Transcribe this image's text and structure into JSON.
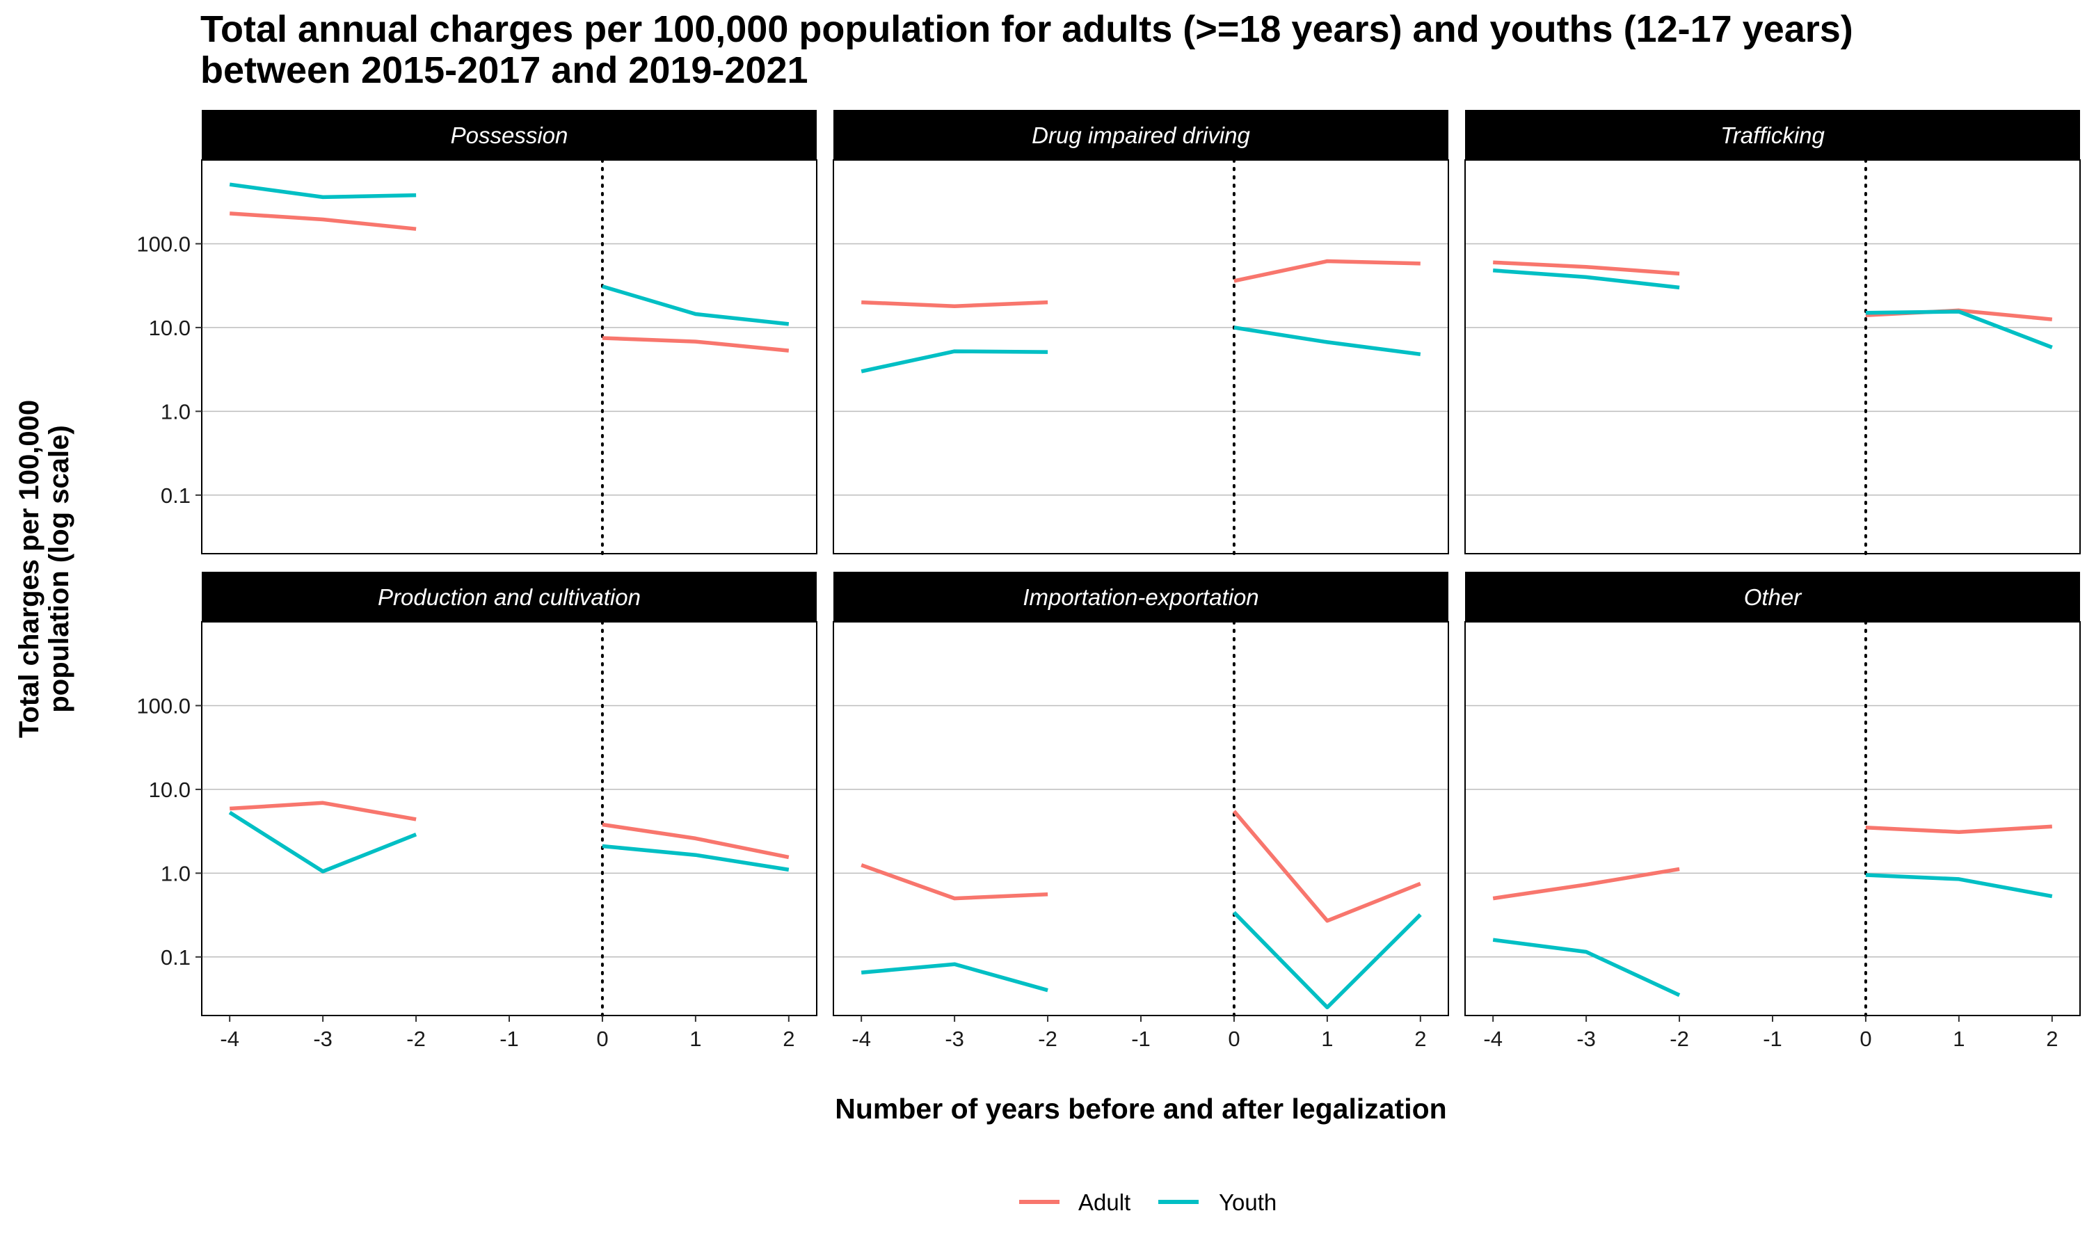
{
  "chart_data": {
    "type": "line",
    "title_lines": [
      "Total annual charges per 100,000 population for adults (>=18 years) and youths (12-17 years)",
      "between 2015-2017 and 2019-2021"
    ],
    "xlabel": "Number of years before and after legalization",
    "ylabel_lines": [
      "Total charges per 100,000",
      "population (log scale)"
    ],
    "x_ticks": [
      -4,
      -3,
      -2,
      -1,
      0,
      1,
      2
    ],
    "x_tick_labels": [
      "-4",
      "-3",
      "-2",
      "-1",
      "0",
      "1",
      "2"
    ],
    "y_scale": "log",
    "y_ticks": [
      0.1,
      1,
      10,
      100
    ],
    "y_tick_labels": [
      "0.1",
      "1.0",
      "10.0",
      "100.0"
    ],
    "xlim": [
      -4.3,
      2.3
    ],
    "ylim": [
      0.02,
      1000
    ],
    "reference_line_x": 0,
    "grid": "horizontal",
    "legend_position": "bottom",
    "series_colors": {
      "Adult": "#F8766D",
      "Youth": "#00BFC4"
    },
    "legend": [
      {
        "name": "Adult",
        "color": "#F8766D"
      },
      {
        "name": "Youth",
        "color": "#00BFC4"
      }
    ],
    "panels": [
      {
        "label": "Possession",
        "series": [
          {
            "name": "Adult",
            "segments": [
              {
                "x": [
                  -4,
                  -3,
                  -2
                ],
                "y": [
                  230,
                  195,
                  150
                ]
              },
              {
                "x": [
                  0,
                  1,
                  2
                ],
                "y": [
                  7.5,
                  6.8,
                  5.3
                ]
              }
            ]
          },
          {
            "name": "Youth",
            "segments": [
              {
                "x": [
                  -4,
                  -3,
                  -2
                ],
                "y": [
                  510,
                  360,
                  380
                ]
              },
              {
                "x": [
                  0,
                  1,
                  2
                ],
                "y": [
                  31,
                  14.5,
                  11
                ]
              }
            ]
          }
        ]
      },
      {
        "label": "Drug impaired driving",
        "series": [
          {
            "name": "Adult",
            "segments": [
              {
                "x": [
                  -4,
                  -3,
                  -2
                ],
                "y": [
                  20,
                  18,
                  20
                ]
              },
              {
                "x": [
                  0,
                  1,
                  2
                ],
                "y": [
                  36,
                  62,
                  58
                ]
              }
            ]
          },
          {
            "name": "Youth",
            "segments": [
              {
                "x": [
                  -4,
                  -3,
                  -2
                ],
                "y": [
                  3.0,
                  5.2,
                  5.1
                ]
              },
              {
                "x": [
                  0,
                  1,
                  2
                ],
                "y": [
                  10,
                  6.7,
                  4.8
                ]
              }
            ]
          }
        ]
      },
      {
        "label": "Trafficking",
        "series": [
          {
            "name": "Adult",
            "segments": [
              {
                "x": [
                  -4,
                  -3,
                  -2
                ],
                "y": [
                  60,
                  53,
                  44
                ]
              },
              {
                "x": [
                  0,
                  1,
                  2
                ],
                "y": [
                  14,
                  16,
                  12.5
                ]
              }
            ]
          },
          {
            "name": "Youth",
            "segments": [
              {
                "x": [
                  -4,
                  -3,
                  -2
                ],
                "y": [
                  48,
                  40,
                  30
                ]
              },
              {
                "x": [
                  0,
                  1,
                  2
                ],
                "y": [
                  15,
                  15.5,
                  5.8
                ]
              }
            ]
          }
        ]
      },
      {
        "label": "Production and cultivation",
        "series": [
          {
            "name": "Adult",
            "segments": [
              {
                "x": [
                  -4,
                  -3,
                  -2
                ],
                "y": [
                  5.9,
                  6.9,
                  4.4
                ]
              },
              {
                "x": [
                  0,
                  1,
                  2
                ],
                "y": [
                  3.8,
                  2.6,
                  1.55
                ]
              }
            ]
          },
          {
            "name": "Youth",
            "segments": [
              {
                "x": [
                  -4,
                  -3,
                  -2
                ],
                "y": [
                  5.3,
                  1.05,
                  2.9
                ]
              },
              {
                "x": [
                  0,
                  1,
                  2
                ],
                "y": [
                  2.1,
                  1.65,
                  1.1
                ]
              }
            ]
          }
        ]
      },
      {
        "label": "Importation-exportation",
        "series": [
          {
            "name": "Adult",
            "segments": [
              {
                "x": [
                  -4,
                  -3,
                  -2
                ],
                "y": [
                  1.25,
                  0.5,
                  0.56
                ]
              },
              {
                "x": [
                  0,
                  1,
                  2
                ],
                "y": [
                  5.5,
                  0.27,
                  0.75
                ]
              }
            ]
          },
          {
            "name": "Youth",
            "segments": [
              {
                "x": [
                  -4,
                  -3,
                  -2
                ],
                "y": [
                  0.065,
                  0.082,
                  0.04
                ]
              },
              {
                "x": [
                  0,
                  1,
                  2
                ],
                "y": [
                  0.34,
                  0.025,
                  0.32
                ]
              }
            ]
          }
        ]
      },
      {
        "label": "Other",
        "series": [
          {
            "name": "Adult",
            "segments": [
              {
                "x": [
                  -4,
                  -3,
                  -2
                ],
                "y": [
                  0.5,
                  0.73,
                  1.12
                ]
              },
              {
                "x": [
                  0,
                  1,
                  2
                ],
                "y": [
                  3.5,
                  3.1,
                  3.6
                ]
              }
            ]
          },
          {
            "name": "Youth",
            "segments": [
              {
                "x": [
                  -4,
                  -3,
                  -2
                ],
                "y": [
                  0.16,
                  0.115,
                  0.035
                ]
              },
              {
                "x": [
                  0,
                  1,
                  2
                ],
                "y": [
                  0.95,
                  0.85,
                  0.53
                ]
              }
            ]
          }
        ]
      }
    ]
  }
}
